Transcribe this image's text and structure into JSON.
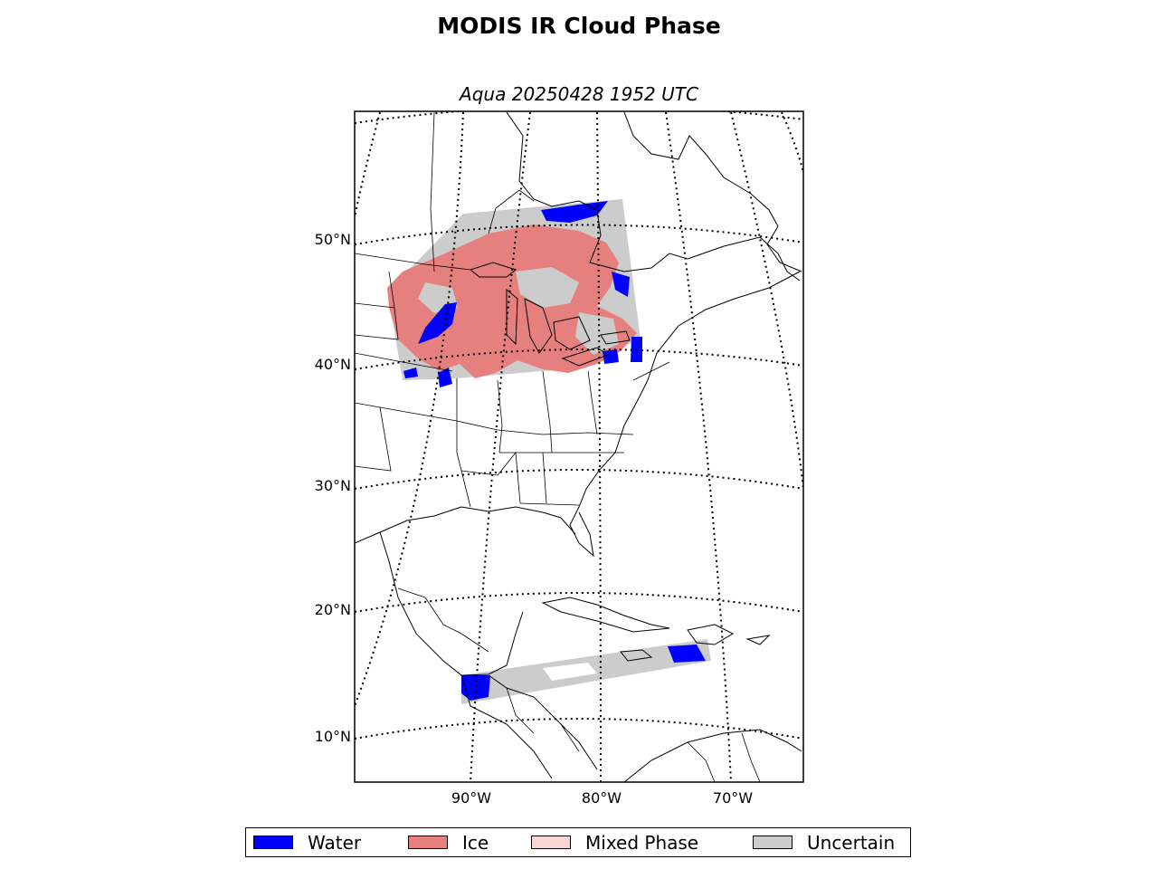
{
  "title": "MODIS IR Cloud Phase",
  "subtitle": "Aqua 20250428 1952 UTC",
  "lat_labels": [
    "50°N",
    "40°N",
    "30°N",
    "20°N",
    "10°N"
  ],
  "lon_labels": [
    "90°W",
    "80°W",
    "70°W"
  ],
  "legend": [
    {
      "label": "Water",
      "color": "#0000ff"
    },
    {
      "label": "Ice",
      "color": "#e6807f"
    },
    {
      "label": "Mixed Phase",
      "color": "#f8d8d6"
    },
    {
      "label": "Uncertain",
      "color": "#cccccc"
    }
  ]
}
